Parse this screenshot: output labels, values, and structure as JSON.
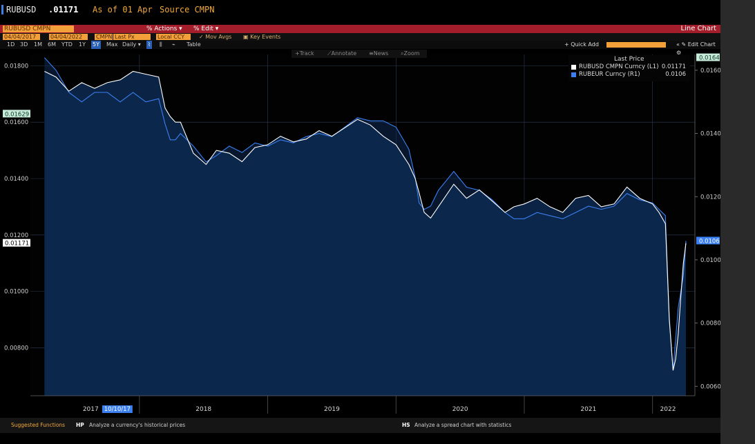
{
  "ticker": {
    "symbol": "RUBUSD",
    "price": ".01171",
    "as_of": "As of 01 Apr",
    "source": "Source CMPN"
  },
  "command": {
    "field": "RUBUSD CMPN Curncy",
    "actions": "Actions",
    "edit": "Edit",
    "view_title": "Line Chart"
  },
  "params": {
    "start_date": "04/04/2017",
    "end_date": "04/04/2022",
    "source_code": "CMPN",
    "field": "Last Px",
    "currency": "Local CCY",
    "mov_avgs": "Mov Avgs",
    "key_events": "Key Events"
  },
  "periods": {
    "items": [
      "1D",
      "3D",
      "1M",
      "6M",
      "YTD",
      "1Y",
      "5Y",
      "Max",
      "Daily"
    ],
    "active": "5Y",
    "table": "Table",
    "quick_add": "+ Quick Add",
    "edit_chart": "Edit Chart"
  },
  "toolbar": {
    "track": "Track",
    "annotate": "Annotate",
    "news": "News",
    "zoom": "Zoom"
  },
  "legend": {
    "header": "Last Price",
    "items": [
      {
        "name": "RUBUSD CMPN Curncy (L1)",
        "value": "0.01171",
        "color": "#ffffff"
      },
      {
        "name": "RUBEUR Curncy (R1)",
        "value": "0.0106",
        "color": "#3b7ff0"
      }
    ]
  },
  "chart_data": {
    "type": "line",
    "x_labels": [
      "2017",
      "2018",
      "2019",
      "2020",
      "2021",
      "2022"
    ],
    "crosshair_date": "10/10/17",
    "left_axis": {
      "ticks": [
        "0.01800",
        "0.01600",
        "0.01400",
        "0.01200",
        "0.01000",
        "0.00800"
      ],
      "range": [
        0.0063,
        0.0184
      ],
      "markers": [
        "0.01629",
        "0.01171"
      ]
    },
    "right_axis": {
      "ticks": [
        "0.0160",
        "0.0140",
        "0.0120",
        "0.0100",
        "0.0080",
        "0.0060"
      ],
      "range": [
        0.0057,
        0.0165
      ],
      "markers": [
        "0.0164",
        "0.0106"
      ]
    },
    "series": [
      {
        "name": "RUBUSD CMPN Curncy (L1)",
        "axis": "left",
        "x": [
          2017.26,
          2017.35,
          2017.45,
          2017.55,
          2017.65,
          2017.75,
          2017.85,
          2017.95,
          2018.05,
          2018.15,
          2018.2,
          2018.24,
          2018.28,
          2018.32,
          2018.42,
          2018.52,
          2018.6,
          2018.7,
          2018.8,
          2018.9,
          2019.0,
          2019.1,
          2019.2,
          2019.3,
          2019.4,
          2019.5,
          2019.6,
          2019.7,
          2019.8,
          2019.9,
          2020.0,
          2020.1,
          2020.15,
          2020.18,
          2020.22,
          2020.27,
          2020.33,
          2020.45,
          2020.55,
          2020.65,
          2020.75,
          2020.85,
          2020.92,
          2021.0,
          2021.1,
          2021.2,
          2021.3,
          2021.4,
          2021.5,
          2021.6,
          2021.7,
          2021.8,
          2021.9,
          2022.0,
          2022.05,
          2022.1,
          2022.13,
          2022.16,
          2022.18,
          2022.2,
          2022.22,
          2022.24,
          2022.26
        ],
        "y": [
          0.0178,
          0.0176,
          0.0171,
          0.0174,
          0.0172,
          0.0174,
          0.0175,
          0.0178,
          0.0177,
          0.0176,
          0.0165,
          0.0162,
          0.016,
          0.016,
          0.0149,
          0.0145,
          0.015,
          0.0149,
          0.0146,
          0.0151,
          0.0152,
          0.0155,
          0.0153,
          0.0154,
          0.0157,
          0.0155,
          0.0158,
          0.0161,
          0.0159,
          0.0155,
          0.0152,
          0.0145,
          0.014,
          0.0135,
          0.0128,
          0.0126,
          0.013,
          0.0138,
          0.0133,
          0.0136,
          0.0132,
          0.0128,
          0.013,
          0.0131,
          0.0133,
          0.013,
          0.0128,
          0.0133,
          0.0134,
          0.013,
          0.0131,
          0.0137,
          0.0133,
          0.0131,
          0.0128,
          0.0124,
          0.009,
          0.0072,
          0.0076,
          0.0085,
          0.0098,
          0.011,
          0.01171
        ]
      },
      {
        "name": "RUBEUR Curncy (R1)",
        "axis": "right",
        "x": [
          2017.26,
          2017.35,
          2017.45,
          2017.55,
          2017.65,
          2017.75,
          2017.85,
          2017.95,
          2018.05,
          2018.15,
          2018.2,
          2018.24,
          2018.28,
          2018.32,
          2018.42,
          2018.52,
          2018.6,
          2018.7,
          2018.8,
          2018.9,
          2019.0,
          2019.1,
          2019.2,
          2019.3,
          2019.4,
          2019.5,
          2019.6,
          2019.7,
          2019.8,
          2019.9,
          2020.0,
          2020.1,
          2020.15,
          2020.18,
          2020.22,
          2020.27,
          2020.33,
          2020.45,
          2020.55,
          2020.65,
          2020.75,
          2020.85,
          2020.92,
          2021.0,
          2021.1,
          2021.2,
          2021.3,
          2021.4,
          2021.5,
          2021.6,
          2021.7,
          2021.8,
          2021.9,
          2022.0,
          2022.05,
          2022.1,
          2022.13,
          2022.16,
          2022.18,
          2022.2,
          2022.22,
          2022.24,
          2022.26
        ],
        "y": [
          0.0164,
          0.016,
          0.0153,
          0.015,
          0.0153,
          0.0153,
          0.015,
          0.0153,
          0.015,
          0.0151,
          0.0143,
          0.0138,
          0.0138,
          0.014,
          0.0136,
          0.0131,
          0.0133,
          0.0136,
          0.0134,
          0.0137,
          0.0136,
          0.0138,
          0.0137,
          0.0139,
          0.014,
          0.0139,
          0.0142,
          0.0145,
          0.0144,
          0.0144,
          0.0142,
          0.0135,
          0.0126,
          0.0118,
          0.0116,
          0.0117,
          0.0122,
          0.0128,
          0.0123,
          0.0122,
          0.0119,
          0.0115,
          0.0113,
          0.0113,
          0.0115,
          0.0114,
          0.0113,
          0.0115,
          0.0117,
          0.0116,
          0.0117,
          0.0121,
          0.0119,
          0.0118,
          0.0116,
          0.0114,
          0.0082,
          0.0065,
          0.0075,
          0.0085,
          0.009,
          0.0095,
          0.0106
        ]
      }
    ],
    "grid": true,
    "legend_position": "top-right"
  },
  "bottom": {
    "label": "Suggested Functions",
    "fn1_code": "HP",
    "fn1_desc": "Analyze a currency's historical prices",
    "fn2_code": "HS",
    "fn2_desc": "Analyze a spread chart with statistics"
  },
  "colors": {
    "accent_orange": "#f3a03a",
    "header_red": "#a31d2a",
    "series_white": "#ffffff",
    "series_blue": "#3b7ff0",
    "plot_fill": "#0b2445"
  }
}
